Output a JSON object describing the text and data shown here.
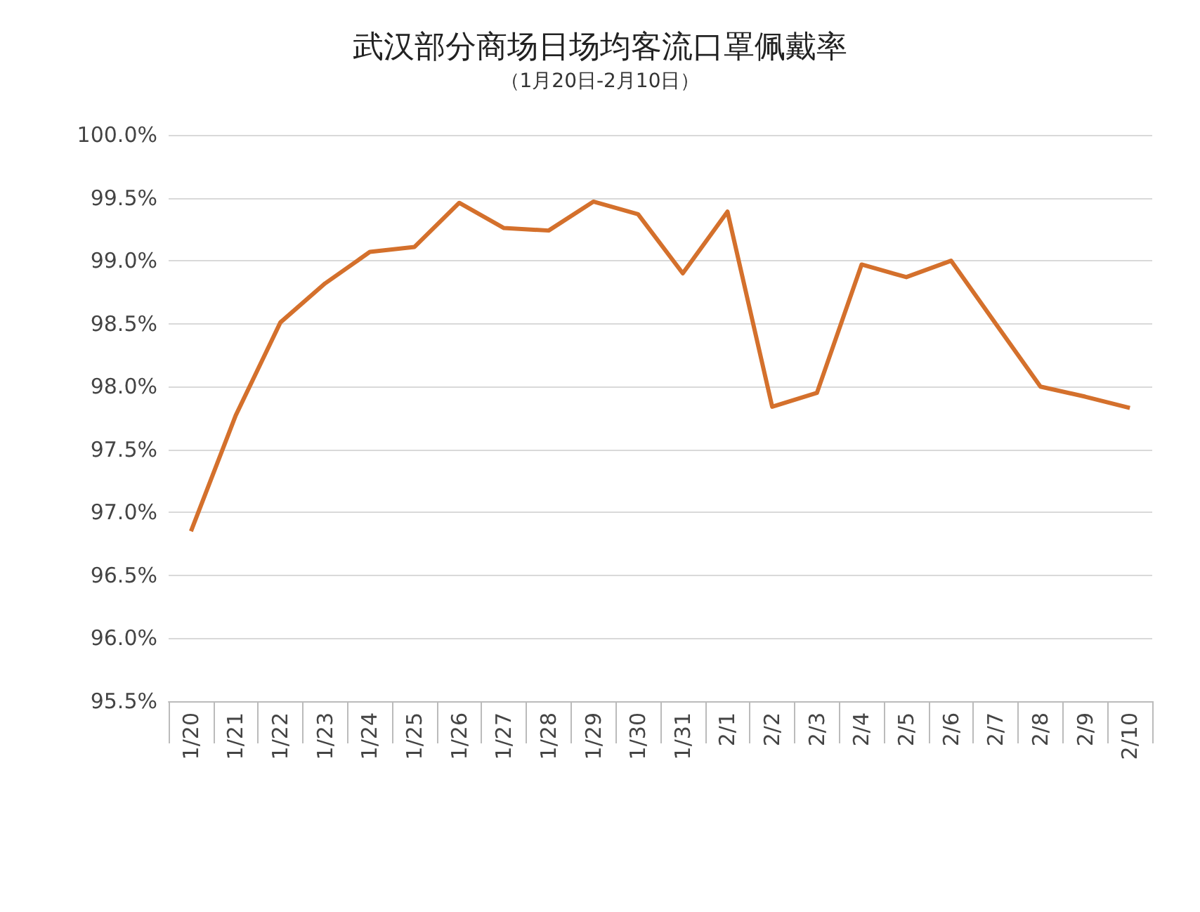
{
  "chart_data": {
    "type": "line",
    "title": "武汉部分商场日场均客流口罩佩戴率",
    "subtitle": "（1月20日-2月10日）",
    "categories": [
      "1/20",
      "1/21",
      "1/22",
      "1/23",
      "1/24",
      "1/25",
      "1/26",
      "1/27",
      "1/28",
      "1/29",
      "1/30",
      "1/31",
      "2/1",
      "2/2",
      "2/3",
      "2/4",
      "2/5",
      "2/6",
      "2/7",
      "2/8",
      "2/9",
      "2/10"
    ],
    "series": [
      {
        "color": "#d4702c",
        "values": [
          96.85,
          97.77,
          98.51,
          98.82,
          99.07,
          99.11,
          99.46,
          99.26,
          99.24,
          99.47,
          99.37,
          98.9,
          99.39,
          97.84,
          97.95,
          98.97,
          98.87,
          99.0,
          98.5,
          98.0,
          97.92,
          97.83
        ]
      }
    ],
    "ylim": [
      95.5,
      100
    ],
    "yticks": [
      {
        "value": 95.5,
        "label": "95.5%"
      },
      {
        "value": 96,
        "label": "96.0%"
      },
      {
        "value": 96.5,
        "label": "96.5%"
      },
      {
        "value": 97,
        "label": "97.0%"
      },
      {
        "value": 97.5,
        "label": "97.5%"
      },
      {
        "value": 98,
        "label": "98.0%"
      },
      {
        "value": 98.5,
        "label": "98.5%"
      },
      {
        "value": 99,
        "label": "99.0%"
      },
      {
        "value": 99.5,
        "label": "99.5%"
      },
      {
        "value": 100,
        "label": "100.0%"
      }
    ],
    "grid": "y",
    "marker": "none",
    "line_style": "solid"
  }
}
